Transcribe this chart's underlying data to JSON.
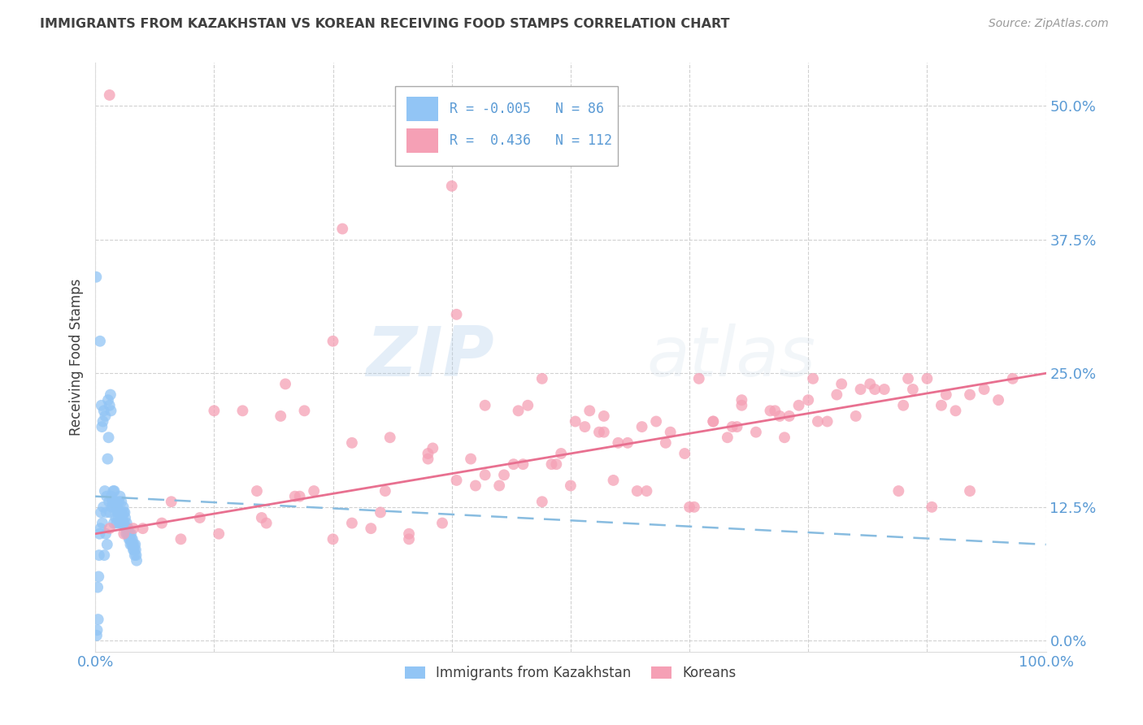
{
  "title": "IMMIGRANTS FROM KAZAKHSTAN VS KOREAN RECEIVING FOOD STAMPS CORRELATION CHART",
  "source": "Source: ZipAtlas.com",
  "ylabel": "Receiving Food Stamps",
  "ytick_values": [
    0.0,
    12.5,
    25.0,
    37.5,
    50.0
  ],
  "xlim": [
    0.0,
    100.0
  ],
  "ylim": [
    -1.0,
    54.0
  ],
  "legend_r_kaz": "-0.005",
  "legend_n_kaz": "86",
  "legend_r_kor": "0.436",
  "legend_n_kor": "112",
  "color_kaz": "#92c5f5",
  "color_kor": "#f5a0b5",
  "trendline_kaz_color": "#88bce0",
  "trendline_kor_color": "#e87090",
  "watermark_zip": "ZIP",
  "watermark_atlas": "atlas",
  "background_color": "#ffffff",
  "grid_color": "#cccccc",
  "axis_label_color": "#5b9bd5",
  "title_color": "#404040",
  "kaz_points_x": [
    0.1,
    0.15,
    0.2,
    0.25,
    0.3,
    0.35,
    0.4,
    0.45,
    0.5,
    0.55,
    0.6,
    0.65,
    0.7,
    0.75,
    0.8,
    0.85,
    0.9,
    0.95,
    1.0,
    1.05,
    1.1,
    1.15,
    1.2,
    1.25,
    1.3,
    1.35,
    1.4,
    1.45,
    1.5,
    1.55,
    1.6,
    1.65,
    1.7,
    1.75,
    1.8,
    1.85,
    1.9,
    1.95,
    2.0,
    2.05,
    2.1,
    2.15,
    2.2,
    2.25,
    2.3,
    2.35,
    2.4,
    2.45,
    2.5,
    2.55,
    2.6,
    2.65,
    2.7,
    2.75,
    2.8,
    2.85,
    2.9,
    2.95,
    3.0,
    3.05,
    3.1,
    3.15,
    3.2,
    3.25,
    3.3,
    3.35,
    3.4,
    3.45,
    3.5,
    3.55,
    3.6,
    3.65,
    3.7,
    3.75,
    3.8,
    3.85,
    3.9,
    3.95,
    4.0,
    4.05,
    4.1,
    4.15,
    4.2,
    4.25,
    4.3,
    4.35
  ],
  "kaz_points_y": [
    34.0,
    0.5,
    1.0,
    5.0,
    2.0,
    6.0,
    8.0,
    10.0,
    28.0,
    10.5,
    12.0,
    22.0,
    20.0,
    11.0,
    20.5,
    12.5,
    21.5,
    8.0,
    14.0,
    21.0,
    10.0,
    12.0,
    13.5,
    9.0,
    17.0,
    22.5,
    19.0,
    13.0,
    22.0,
    12.0,
    23.0,
    21.5,
    13.5,
    12.5,
    13.0,
    13.0,
    14.0,
    11.0,
    14.0,
    12.5,
    13.0,
    11.5,
    13.0,
    11.0,
    12.5,
    12.0,
    12.0,
    11.5,
    13.0,
    11.0,
    13.5,
    12.0,
    11.0,
    13.0,
    12.0,
    11.5,
    11.0,
    12.5,
    12.0,
    11.0,
    12.0,
    11.5,
    10.5,
    10.0,
    11.0,
    10.5,
    10.0,
    10.5,
    10.0,
    9.5,
    10.0,
    9.5,
    9.0,
    10.0,
    9.5,
    9.0,
    9.5,
    9.0,
    8.5,
    9.0,
    8.5,
    8.0,
    9.0,
    8.5,
    8.0,
    7.5
  ],
  "kor_points_x": [
    1.5,
    3.0,
    5.0,
    7.0,
    9.0,
    11.0,
    13.0,
    15.5,
    17.5,
    19.5,
    21.0,
    23.0,
    25.0,
    27.0,
    29.0,
    31.0,
    33.0,
    35.0,
    36.5,
    38.0,
    39.5,
    41.0,
    42.5,
    44.0,
    45.5,
    47.0,
    48.5,
    50.0,
    51.5,
    53.0,
    54.5,
    56.0,
    57.5,
    59.0,
    60.5,
    62.0,
    63.5,
    65.0,
    66.5,
    68.0,
    69.5,
    71.0,
    72.5,
    74.0,
    75.5,
    77.0,
    78.5,
    80.0,
    81.5,
    83.0,
    84.5,
    86.0,
    87.5,
    89.0,
    90.5,
    92.0,
    93.5,
    95.0,
    96.5,
    4.0,
    8.0,
    12.5,
    17.0,
    21.5,
    26.0,
    30.5,
    35.5,
    40.0,
    44.5,
    49.0,
    53.5,
    58.0,
    62.5,
    67.0,
    71.5,
    76.0,
    80.5,
    85.0,
    89.5,
    55.0,
    45.0,
    65.0,
    33.0,
    73.0,
    25.0,
    48.0,
    60.0,
    35.0,
    18.0,
    82.0,
    92.0,
    52.0,
    38.0,
    27.0,
    43.0,
    68.0,
    78.0,
    57.0,
    22.0,
    88.0,
    47.0,
    30.0,
    63.0,
    75.0,
    41.0,
    53.5,
    20.0,
    85.5,
    37.5,
    67.5,
    50.5,
    72.0
  ],
  "kor_points_y": [
    10.5,
    10.0,
    10.5,
    11.0,
    9.5,
    11.5,
    10.0,
    21.5,
    11.5,
    21.0,
    13.5,
    14.0,
    9.5,
    18.5,
    10.5,
    19.0,
    10.0,
    17.5,
    11.0,
    30.5,
    17.0,
    22.0,
    14.5,
    16.5,
    22.0,
    13.0,
    16.5,
    14.5,
    20.0,
    19.5,
    15.0,
    18.5,
    20.0,
    20.5,
    19.5,
    17.5,
    24.5,
    20.5,
    19.0,
    22.5,
    19.5,
    21.5,
    19.0,
    22.0,
    24.5,
    20.5,
    24.0,
    21.0,
    24.0,
    23.5,
    14.0,
    23.5,
    24.5,
    22.0,
    21.5,
    23.0,
    23.5,
    22.5,
    24.5,
    10.5,
    13.0,
    21.5,
    14.0,
    13.5,
    38.5,
    14.0,
    18.0,
    14.5,
    21.5,
    17.5,
    21.0,
    14.0,
    12.5,
    20.0,
    21.5,
    20.5,
    23.5,
    22.0,
    23.0,
    18.5,
    16.5,
    20.5,
    9.5,
    21.0,
    28.0,
    16.5,
    18.5,
    17.0,
    11.0,
    23.5,
    14.0,
    21.5,
    15.0,
    11.0,
    15.5,
    22.0,
    23.0,
    14.0,
    21.5,
    12.5,
    24.5,
    12.0,
    12.5,
    22.5,
    15.5,
    19.5,
    24.0,
    24.5,
    42.5,
    20.0,
    20.5,
    21.0
  ],
  "kor_outlier_x": 1.5,
  "kor_outlier_y": 51.0
}
